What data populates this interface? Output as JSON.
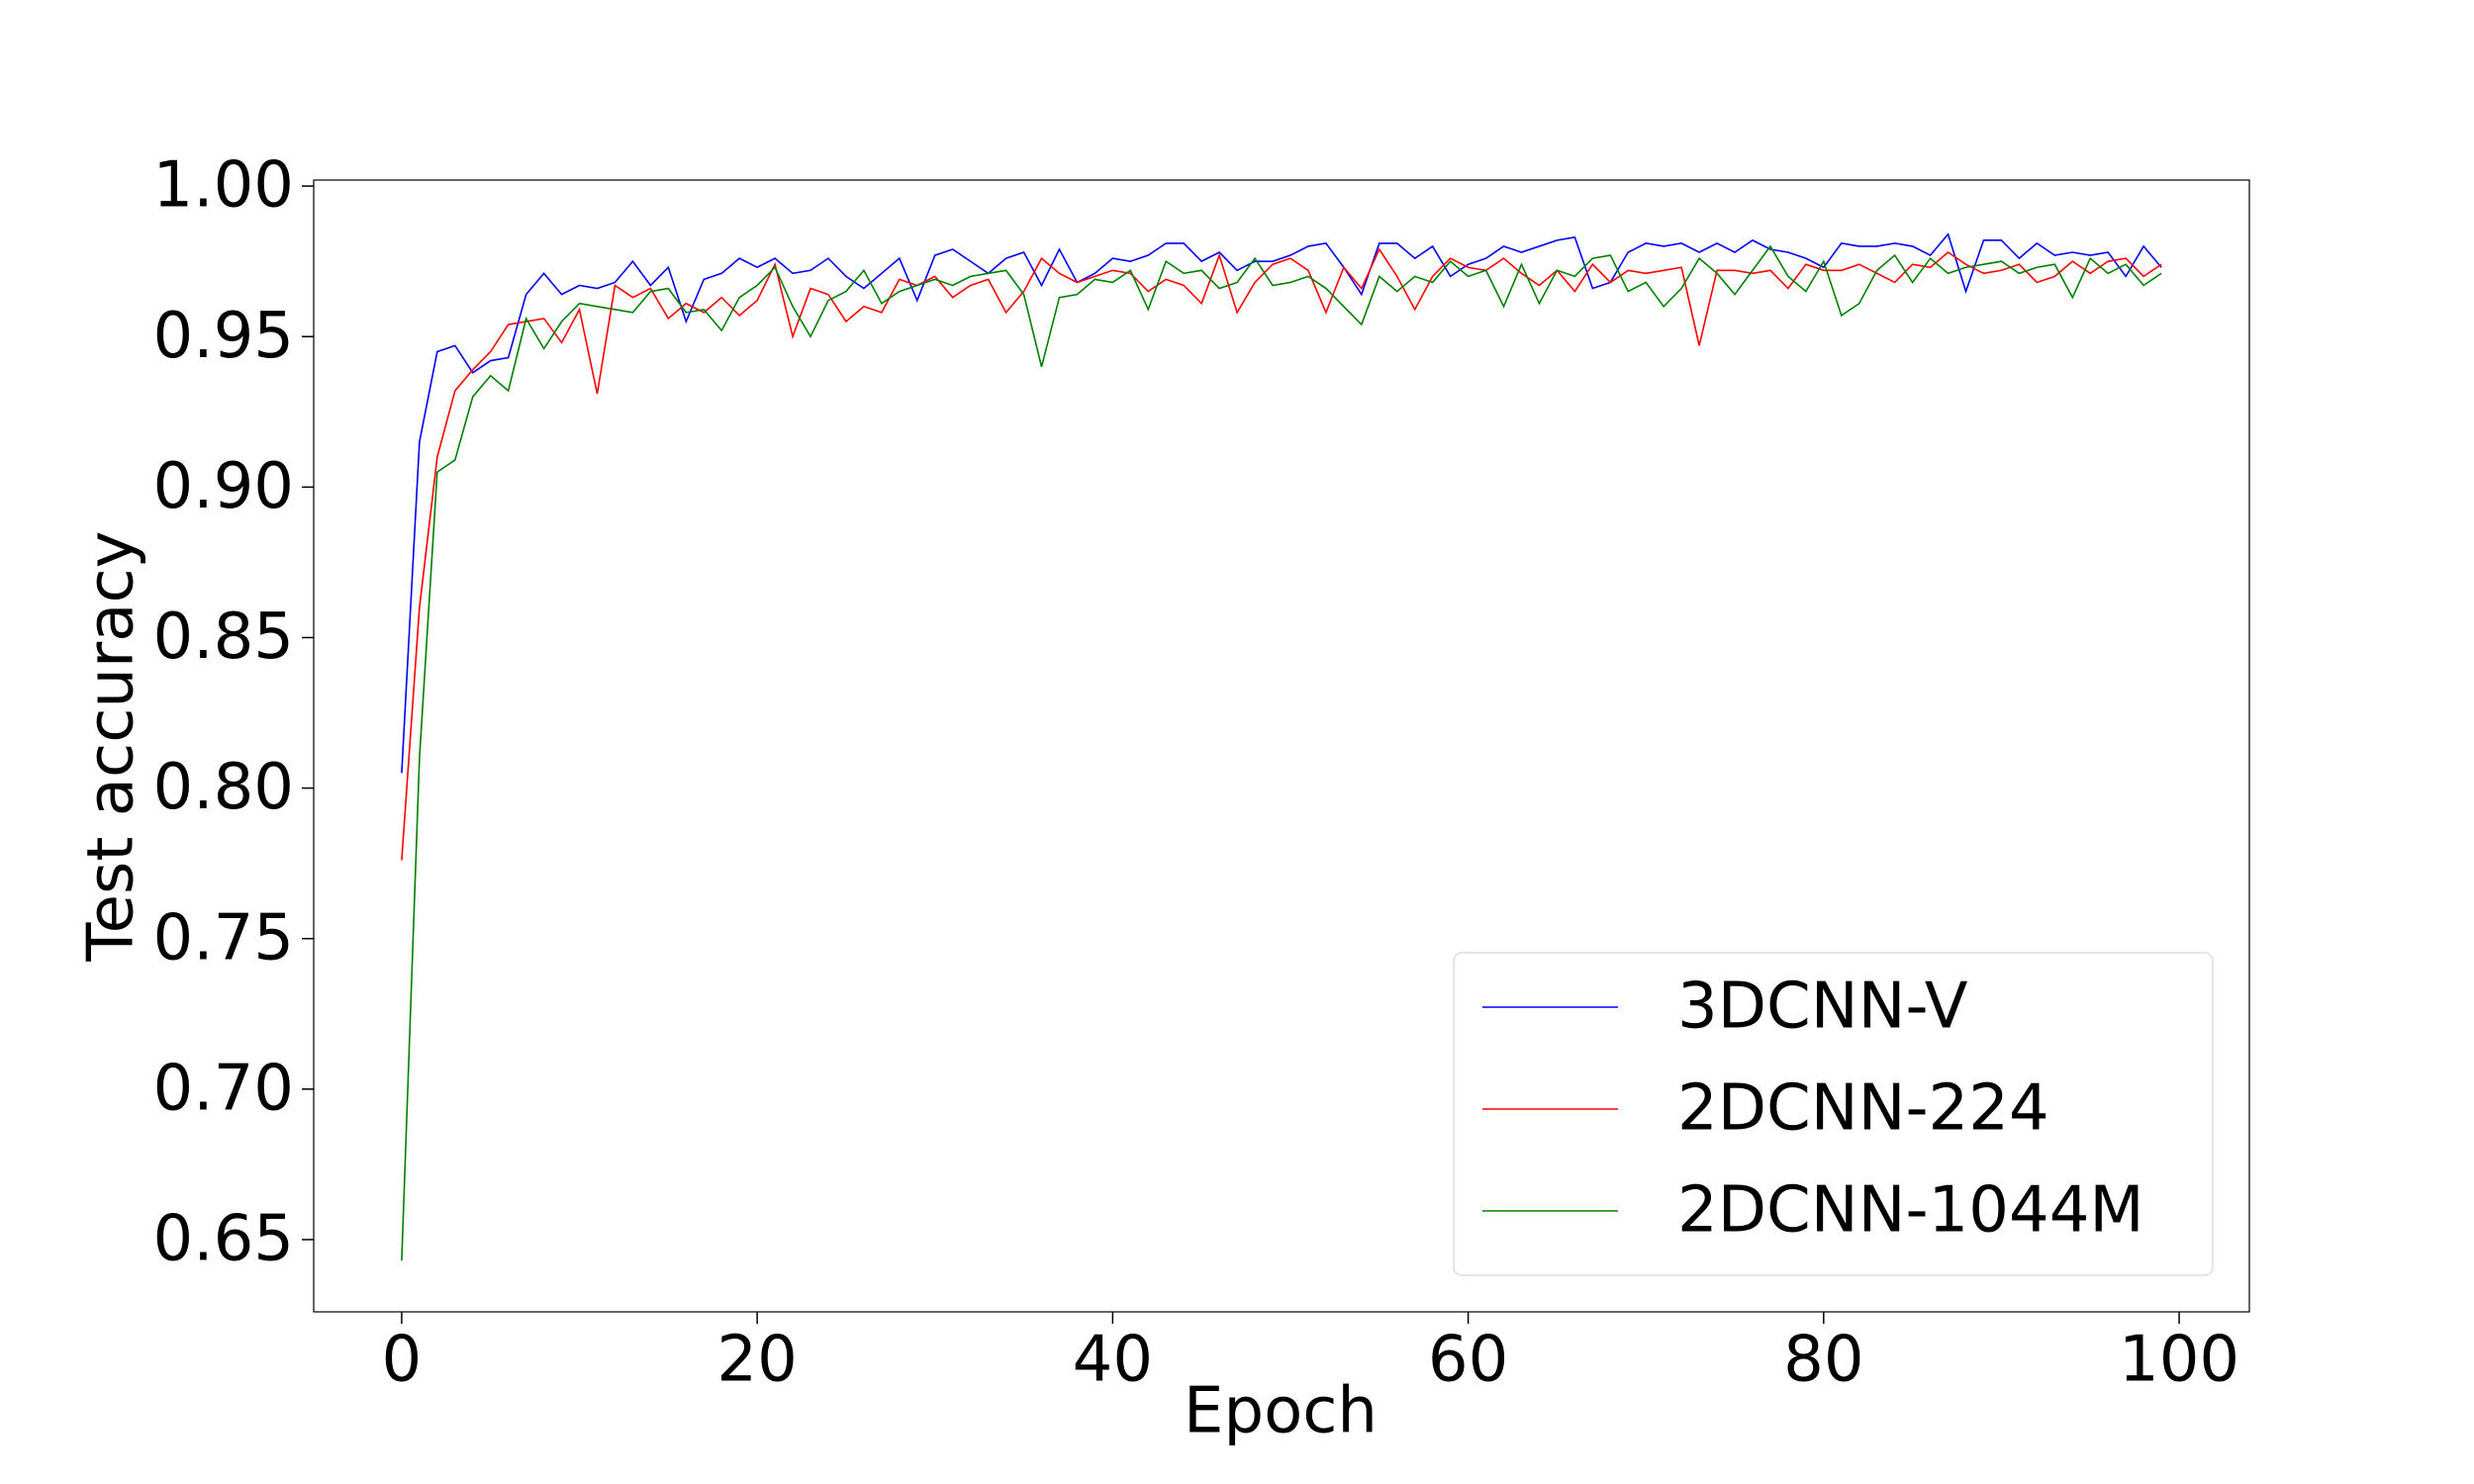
{
  "chart_data": {
    "type": "line",
    "x_label": "Epoch",
    "y_label": "Test accuracy",
    "x": [
      0,
      1,
      2,
      3,
      4,
      5,
      6,
      7,
      8,
      9,
      10,
      11,
      12,
      13,
      14,
      15,
      16,
      17,
      18,
      19,
      20,
      21,
      22,
      23,
      24,
      25,
      26,
      27,
      28,
      29,
      30,
      31,
      32,
      33,
      34,
      35,
      36,
      37,
      38,
      39,
      40,
      41,
      42,
      43,
      44,
      45,
      46,
      47,
      48,
      49,
      50,
      51,
      52,
      53,
      54,
      55,
      56,
      57,
      58,
      59,
      60,
      61,
      62,
      63,
      64,
      65,
      66,
      67,
      68,
      69,
      70,
      71,
      72,
      73,
      74,
      75,
      76,
      77,
      78,
      79,
      80,
      81,
      82,
      83,
      84,
      85,
      86,
      87,
      88,
      89,
      90,
      91,
      92,
      93,
      94,
      95,
      96,
      97,
      98,
      99
    ],
    "series": [
      {
        "name": "3DCNN-V",
        "color": "#0000ff",
        "values": [
          0.805,
          0.915,
          0.945,
          0.947,
          0.938,
          0.942,
          0.943,
          0.964,
          0.971,
          0.964,
          0.967,
          0.966,
          0.968,
          0.975,
          0.967,
          0.973,
          0.955,
          0.969,
          0.971,
          0.976,
          0.973,
          0.976,
          0.971,
          0.972,
          0.976,
          0.97,
          0.966,
          0.971,
          0.976,
          0.962,
          0.977,
          0.979,
          0.975,
          0.971,
          0.976,
          0.978,
          0.967,
          0.979,
          0.968,
          0.971,
          0.976,
          0.975,
          0.977,
          0.981,
          0.981,
          0.975,
          0.978,
          0.972,
          0.975,
          0.975,
          0.977,
          0.98,
          0.981,
          0.973,
          0.964,
          0.981,
          0.981,
          0.976,
          0.98,
          0.97,
          0.974,
          0.976,
          0.98,
          0.978,
          0.98,
          0.982,
          0.983,
          0.966,
          0.968,
          0.978,
          0.981,
          0.98,
          0.981,
          0.978,
          0.981,
          0.978,
          0.982,
          0.979,
          0.978,
          0.976,
          0.973,
          0.981,
          0.98,
          0.98,
          0.981,
          0.98,
          0.977,
          0.984,
          0.965,
          0.982,
          0.982,
          0.976,
          0.981,
          0.977,
          0.978,
          0.977,
          0.978,
          0.97,
          0.98,
          0.973
        ]
      },
      {
        "name": "2DCNN-224",
        "color": "#ff0000",
        "values": [
          0.776,
          0.86,
          0.91,
          0.932,
          0.939,
          0.945,
          0.954,
          0.955,
          0.956,
          0.948,
          0.959,
          0.931,
          0.967,
          0.963,
          0.966,
          0.956,
          0.961,
          0.958,
          0.963,
          0.957,
          0.962,
          0.974,
          0.95,
          0.966,
          0.964,
          0.955,
          0.96,
          0.958,
          0.969,
          0.967,
          0.97,
          0.963,
          0.967,
          0.969,
          0.958,
          0.965,
          0.976,
          0.971,
          0.968,
          0.97,
          0.972,
          0.971,
          0.965,
          0.969,
          0.967,
          0.961,
          0.977,
          0.958,
          0.968,
          0.974,
          0.976,
          0.972,
          0.958,
          0.973,
          0.966,
          0.979,
          0.97,
          0.959,
          0.97,
          0.976,
          0.973,
          0.972,
          0.976,
          0.971,
          0.967,
          0.972,
          0.965,
          0.974,
          0.968,
          0.972,
          0.971,
          0.972,
          0.973,
          0.947,
          0.972,
          0.972,
          0.971,
          0.972,
          0.966,
          0.974,
          0.972,
          0.972,
          0.974,
          0.971,
          0.968,
          0.974,
          0.973,
          0.978,
          0.974,
          0.971,
          0.972,
          0.974,
          0.968,
          0.97,
          0.975,
          0.971,
          0.975,
          0.976,
          0.97,
          0.974
        ]
      },
      {
        "name": "2DCNN-1044M",
        "color": "#008000",
        "values": [
          0.643,
          0.81,
          0.905,
          0.909,
          0.93,
          0.937,
          0.932,
          0.956,
          0.946,
          0.955,
          0.961,
          0.96,
          0.959,
          0.958,
          0.965,
          0.966,
          0.958,
          0.959,
          0.952,
          0.963,
          0.967,
          0.973,
          0.96,
          0.95,
          0.962,
          0.965,
          0.972,
          0.961,
          0.965,
          0.967,
          0.969,
          0.967,
          0.97,
          0.971,
          0.972,
          0.964,
          0.94,
          0.963,
          0.964,
          0.969,
          0.968,
          0.972,
          0.959,
          0.975,
          0.971,
          0.972,
          0.966,
          0.968,
          0.976,
          0.967,
          0.968,
          0.97,
          0.966,
          0.96,
          0.954,
          0.97,
          0.965,
          0.97,
          0.968,
          0.975,
          0.97,
          0.972,
          0.96,
          0.974,
          0.961,
          0.972,
          0.97,
          0.976,
          0.977,
          0.965,
          0.968,
          0.96,
          0.966,
          0.976,
          0.971,
          0.964,
          0.972,
          0.98,
          0.97,
          0.965,
          0.975,
          0.957,
          0.961,
          0.972,
          0.977,
          0.968,
          0.976,
          0.971,
          0.973,
          0.974,
          0.975,
          0.971,
          0.973,
          0.974,
          0.963,
          0.976,
          0.971,
          0.974,
          0.967,
          0.971
        ]
      }
    ],
    "xlim": [
      -4.95,
      103.95
    ],
    "xticks": [
      0,
      20,
      40,
      60,
      80,
      100
    ],
    "ylim": [
      0.626,
      1.002
    ],
    "yticks": [
      0.65,
      {
        "value": 0.7,
        "label": "0.70"
      },
      0.75,
      {
        "value": 0.8,
        "label": "0.80"
      },
      0.85,
      {
        "value": 0.9,
        "label": "0.90"
      },
      0.95,
      {
        "value": 1.0,
        "label": "1.00"
      }
    ],
    "legend": "lower right"
  }
}
